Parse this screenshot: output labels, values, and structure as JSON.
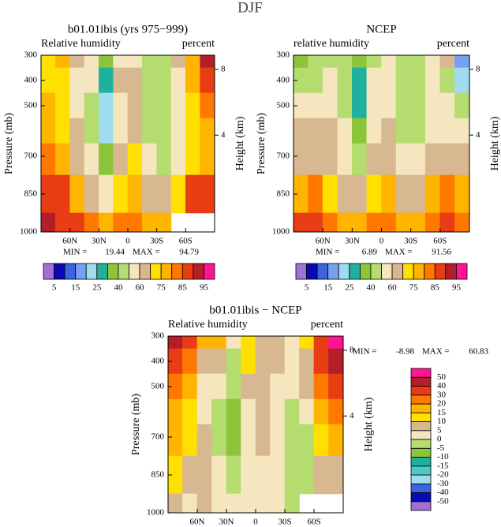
{
  "page_title": "DJF",
  "chart_data": [
    {
      "type": "contour",
      "title": "b01.01ibis (yrs 975−999)",
      "subtitle_left": "Relative humidity",
      "subtitle_right": "percent",
      "ylabel": "Pressure (mb)",
      "y2label": "Height (km)",
      "x": [
        82.5,
        67.5,
        52.5,
        37.5,
        22.5,
        7.5,
        -7.5,
        -22.5,
        -37.5,
        -52.5,
        -67.5,
        -82.5
      ],
      "y": [
        300,
        400,
        500,
        600,
        700,
        850,
        1000
      ],
      "z": [
        [
          70,
          75,
          60,
          55,
          30,
          55,
          55,
          45,
          45,
          60,
          75,
          90
        ],
        [
          72,
          70,
          55,
          50,
          25,
          60,
          60,
          45,
          42,
          55,
          75,
          85
        ],
        [
          75,
          70,
          55,
          45,
          22,
          55,
          60,
          42,
          40,
          55,
          72,
          80
        ],
        [
          78,
          72,
          60,
          45,
          22,
          55,
          65,
          45,
          42,
          55,
          70,
          78
        ],
        [
          80,
          75,
          65,
          50,
          30,
          60,
          70,
          50,
          45,
          55,
          70,
          75
        ],
        [
          85,
          85,
          75,
          65,
          55,
          70,
          78,
          65,
          60,
          70,
          85,
          85
        ],
        [
          92,
          88,
          85,
          80,
          75,
          80,
          82,
          78,
          75,
          null,
          null,
          null
        ]
      ],
      "xlim": [
        90,
        -90
      ],
      "ylim": [
        300,
        1000
      ],
      "xticks": [
        {
          "value": 60,
          "label": "60N"
        },
        {
          "value": 30,
          "label": "30N"
        },
        0,
        {
          "value": -30,
          "label": "30S"
        },
        {
          "value": -60,
          "label": "60S"
        }
      ],
      "yticks": [
        300,
        400,
        500,
        700,
        850,
        1000
      ],
      "y2ticks": [
        8,
        4
      ],
      "y2scale": "standard-atmosphere",
      "min_label": "MIN =",
      "min": 19.44,
      "max_label": "MAX =",
      "max": 94.79,
      "colorbar": "horizontal",
      "level_label_step": 2,
      "levels": [
        5,
        10,
        15,
        20,
        25,
        30,
        40,
        50,
        60,
        70,
        75,
        80,
        85,
        90,
        95
      ],
      "colors": [
        "#a070d8",
        "#0a0ab4",
        "#3c64dc",
        "#78a0f0",
        "#a0dcf0",
        "#20b0a0",
        "#8cc43c",
        "#b4dc6e",
        "#f5e6c0",
        "#d8b890",
        "#ffe000",
        "#ffb400",
        "#ff7800",
        "#e83c14",
        "#b41e28",
        "#ff1493"
      ]
    },
    {
      "type": "contour",
      "title": "NCEP",
      "subtitle_left": "relative humidity",
      "subtitle_right": "percent",
      "ylabel": "Pressure (mb)",
      "y2label": "Height (km)",
      "x": [
        82.5,
        67.5,
        52.5,
        37.5,
        22.5,
        7.5,
        -7.5,
        -22.5,
        -37.5,
        -52.5,
        -67.5,
        -82.5
      ],
      "y": [
        300,
        400,
        500,
        600,
        700,
        850,
        1000
      ],
      "z": [
        [
          30,
          40,
          45,
          40,
          30,
          45,
          50,
          40,
          45,
          50,
          60,
          15
        ],
        [
          40,
          45,
          50,
          45,
          28,
          50,
          55,
          40,
          42,
          50,
          45,
          20
        ],
        [
          55,
          55,
          55,
          45,
          25,
          50,
          55,
          40,
          40,
          50,
          50,
          45
        ],
        [
          60,
          60,
          60,
          50,
          30,
          55,
          60,
          45,
          45,
          55,
          55,
          55
        ],
        [
          65,
          65,
          60,
          55,
          40,
          60,
          65,
          50,
          50,
          60,
          60,
          60
        ],
        [
          75,
          80,
          70,
          65,
          60,
          70,
          75,
          65,
          65,
          75,
          80,
          75
        ],
        [
          85,
          85,
          80,
          78,
          75,
          80,
          82,
          78,
          78,
          82,
          88,
          80
        ]
      ],
      "xlim": [
        90,
        -90
      ],
      "ylim": [
        300,
        1000
      ],
      "xticks": [
        {
          "value": 60,
          "label": "60N"
        },
        {
          "value": 30,
          "label": "30N"
        },
        0,
        {
          "value": -30,
          "label": "30S"
        },
        {
          "value": -60,
          "label": "60S"
        }
      ],
      "yticks": [
        300,
        400,
        500,
        700,
        850,
        1000
      ],
      "y2ticks": [
        8,
        4
      ],
      "y2scale": "standard-atmosphere",
      "min_label": "MIN =",
      "min": 6.89,
      "max_label": "MAX =",
      "max": 91.56,
      "colorbar": "horizontal",
      "level_label_step": 2,
      "levels": [
        5,
        10,
        15,
        20,
        25,
        30,
        40,
        50,
        60,
        70,
        75,
        80,
        85,
        90,
        95
      ],
      "colors": [
        "#a070d8",
        "#0a0ab4",
        "#3c64dc",
        "#78a0f0",
        "#a0dcf0",
        "#20b0a0",
        "#8cc43c",
        "#b4dc6e",
        "#f5e6c0",
        "#d8b890",
        "#ffe000",
        "#ffb400",
        "#ff7800",
        "#e83c14",
        "#b41e28",
        "#ff1493"
      ]
    },
    {
      "type": "contour",
      "title": "b01.01ibis − NCEP",
      "subtitle_left": "Relative humidity",
      "subtitle_right": "percent",
      "ylabel": "Pressure (mb)",
      "y2label": "Height (km)",
      "x": [
        82.5,
        67.5,
        52.5,
        37.5,
        22.5,
        7.5,
        -7.5,
        -22.5,
        -37.5,
        -52.5,
        -67.5,
        -82.5
      ],
      "y": [
        300,
        400,
        500,
        600,
        700,
        850,
        1000
      ],
      "z": [
        [
          40,
          35,
          15,
          15,
          0,
          10,
          5,
          5,
          0,
          10,
          30,
          60
        ],
        [
          32,
          25,
          5,
          5,
          -3,
          10,
          5,
          5,
          0,
          5,
          30,
          45
        ],
        [
          20,
          15,
          0,
          0,
          -3,
          5,
          5,
          2,
          0,
          5,
          22,
          35
        ],
        [
          18,
          12,
          0,
          -5,
          -8,
          0,
          5,
          0,
          -3,
          0,
          15,
          23
        ],
        [
          15,
          10,
          5,
          -5,
          -8,
          0,
          5,
          0,
          -5,
          -5,
          10,
          15
        ],
        [
          10,
          5,
          5,
          0,
          -5,
          0,
          3,
          0,
          -5,
          -5,
          5,
          5
        ],
        [
          7,
          3,
          5,
          2,
          0,
          0,
          0,
          0,
          -3,
          null,
          null,
          null
        ]
      ],
      "xlim": [
        90,
        -90
      ],
      "ylim": [
        300,
        1000
      ],
      "xticks": [
        {
          "value": 60,
          "label": "60N"
        },
        {
          "value": 30,
          "label": "30N"
        },
        0,
        {
          "value": -30,
          "label": "30S"
        },
        {
          "value": -60,
          "label": "60S"
        }
      ],
      "yticks": [
        300,
        400,
        500,
        700,
        850,
        1000
      ],
      "y2ticks": [
        8,
        4
      ],
      "y2scale": "standard-atmosphere",
      "min_label": "MIN =",
      "min": -8.98,
      "max_label": "MAX =",
      "max": 60.83,
      "colorbar": "vertical",
      "level_label_step": 1,
      "levels": [
        -50,
        -40,
        -30,
        -20,
        -15,
        -10,
        -5,
        0,
        5,
        10,
        15,
        20,
        30,
        40,
        50
      ],
      "colors": [
        "#a070d8",
        "#0a0ab4",
        "#3c64dc",
        "#a0dcf0",
        "#50c8c8",
        "#20b0a0",
        "#8cc43c",
        "#b4dc6e",
        "#f5e6c0",
        "#d8b890",
        "#ffe000",
        "#ffb400",
        "#ff7800",
        "#e83c14",
        "#b41e28",
        "#ff1493"
      ]
    }
  ]
}
